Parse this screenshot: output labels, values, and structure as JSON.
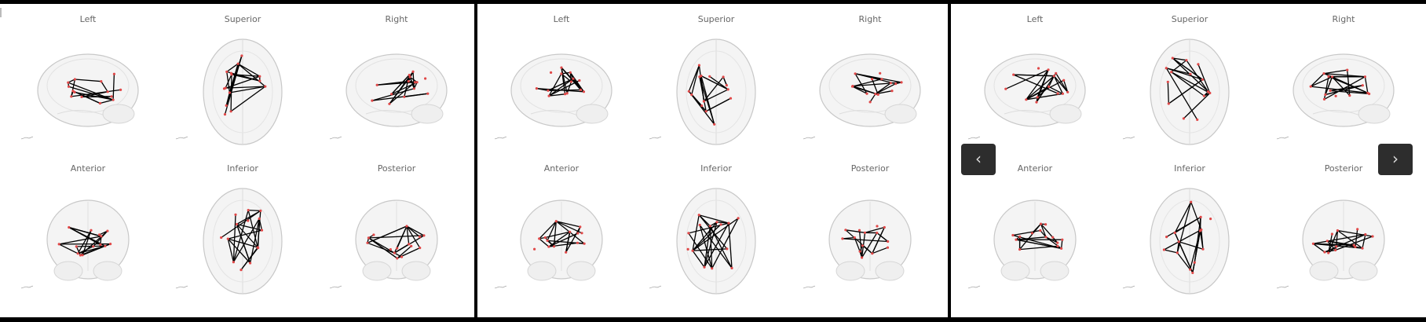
{
  "gallery": {
    "panels": [
      {
        "views": [
          "Left",
          "Superior",
          "Right",
          "Anterior",
          "Inferior",
          "Posterior"
        ]
      },
      {
        "views": [
          "Left",
          "Superior",
          "Right",
          "Anterior",
          "Inferior",
          "Posterior"
        ]
      },
      {
        "views": [
          "Left",
          "Superior",
          "Right",
          "Anterior",
          "Inferior",
          "Posterior"
        ]
      }
    ],
    "controls": {
      "prev_label": "‹",
      "next_label": "›"
    },
    "icons": {
      "prev": "chevron-left-icon",
      "next": "chevron-right-icon"
    },
    "colors": {
      "connection": "#000000",
      "node": "#e04848",
      "brain_outline": "#c8c8c8",
      "nav_button": "#2d2d2d"
    }
  }
}
